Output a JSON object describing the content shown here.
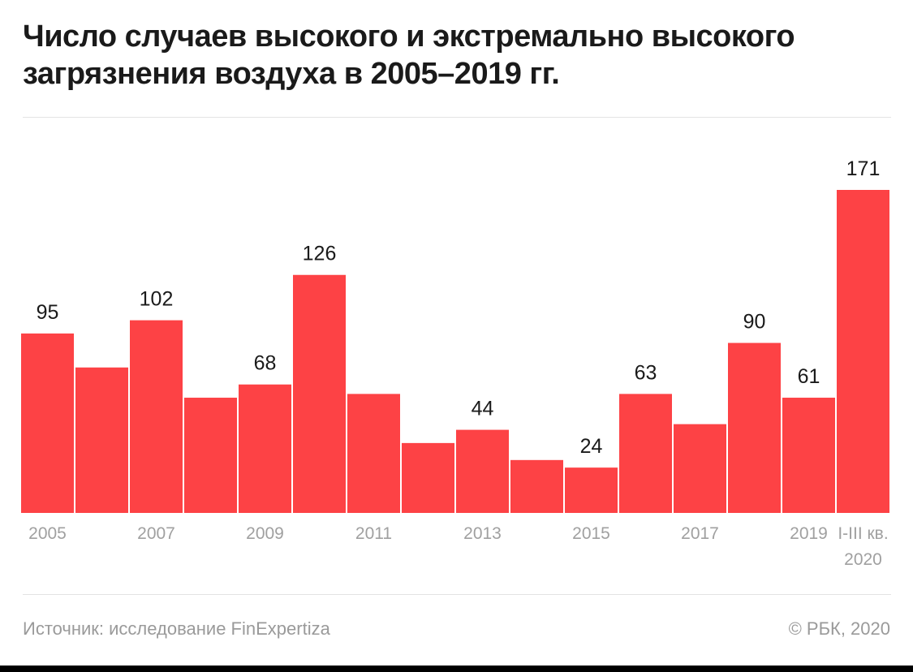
{
  "title": "Число случаев высокого и экстремально высокого загрязнения воздуха в 2005–2019 гг.",
  "source": "Источник: исследование FinExpertiza",
  "copyright": "© РБК, 2020",
  "colors": {
    "bar": "#fd4245",
    "axis_text": "#a0a0a0",
    "value_text": "#1a1a1a"
  },
  "chart_data": {
    "type": "bar",
    "title": "Число случаев высокого и экстремально высокого загрязнения воздуха в 2005–2019 гг.",
    "xlabel": "",
    "ylabel": "",
    "ylim": [
      0,
      171
    ],
    "categories": [
      "2005",
      "2006",
      "2007",
      "2008",
      "2009",
      "2010",
      "2011",
      "2012",
      "2013",
      "2014",
      "2015",
      "2016",
      "2017",
      "2018",
      "2019",
      "I-III кв. 2020"
    ],
    "values": [
      95,
      77,
      102,
      61,
      68,
      126,
      63,
      37,
      44,
      28,
      24,
      63,
      47,
      90,
      61,
      171
    ],
    "value_labels": [
      "95",
      "",
      "102",
      "",
      "68",
      "126",
      "",
      "",
      "44",
      "",
      "24",
      "63",
      "",
      "90",
      "61",
      "171"
    ],
    "tick_labels": [
      "2005",
      "",
      "2007",
      "",
      "2009",
      "",
      "2011",
      "",
      "2013",
      "",
      "2015",
      "",
      "2017",
      "",
      "2019",
      "I-III кв.\n2020"
    ],
    "grid": false,
    "legend": "none"
  }
}
